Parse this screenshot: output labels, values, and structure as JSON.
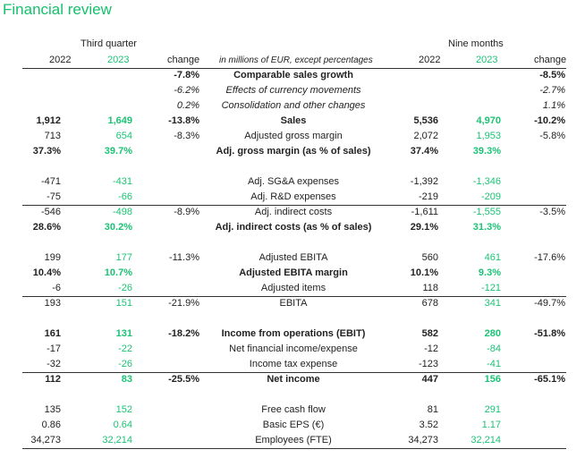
{
  "title": "Financial review",
  "header": {
    "third_quarter": "Third quarter",
    "nine_months": "Nine months",
    "y2022": "2022",
    "y2023": "2023",
    "change": "change",
    "unit_note": "in millions of EUR, except percentages"
  },
  "rows": [
    {
      "q22": "",
      "q23": "",
      "qc": "-7.8%",
      "label": "Comparable sales growth",
      "n22": "",
      "n23": "",
      "nc": "-8.5%",
      "bold": true,
      "italic": false
    },
    {
      "q22": "",
      "q23": "",
      "qc": "-6.2%",
      "label": "Effects of currency movements",
      "n22": "",
      "n23": "",
      "nc": "-2.7%",
      "bold": false,
      "italic": true
    },
    {
      "q22": "",
      "q23": "",
      "qc": "0.2%",
      "label": "Consolidation and other changes",
      "n22": "",
      "n23": "",
      "nc": "1.1%",
      "bold": false,
      "italic": true
    },
    {
      "q22": "1,912",
      "q23": "1,649",
      "qc": "-13.8%",
      "label": "Sales",
      "n22": "5,536",
      "n23": "4,970",
      "nc": "-10.2%",
      "bold": true,
      "italic": false
    },
    {
      "q22": "713",
      "q23": "654",
      "qc": "-8.3%",
      "label": "Adjusted gross margin",
      "n22": "2,072",
      "n23": "1,953",
      "nc": "-5.8%",
      "bold": false,
      "italic": false
    },
    {
      "q22": "37.3%",
      "q23": "39.7%",
      "qc": "",
      "label": "Adj. gross margin (as % of sales)",
      "n22": "37.4%",
      "n23": "39.3%",
      "nc": "",
      "bold": true,
      "italic": false
    },
    {
      "q22": "-471",
      "q23": "-431",
      "qc": "",
      "label": "Adj. SG&A expenses",
      "n22": "-1,392",
      "n23": "-1,346",
      "nc": "",
      "bold": false,
      "italic": false
    },
    {
      "q22": "-75",
      "q23": "-66",
      "qc": "",
      "label": "Adj. R&D expenses",
      "n22": "-219",
      "n23": "-209",
      "nc": "",
      "bold": false,
      "italic": false
    },
    {
      "q22": "-546",
      "q23": "-498",
      "qc": "-8.9%",
      "label": "Adj. indirect costs",
      "n22": "-1,611",
      "n23": "-1,555",
      "nc": "-3.5%",
      "bold": false,
      "italic": false
    },
    {
      "q22": "28.6%",
      "q23": "30.2%",
      "qc": "",
      "label": "Adj. indirect costs (as % of sales)",
      "n22": "29.1%",
      "n23": "31.3%",
      "nc": "",
      "bold": true,
      "italic": false
    },
    {
      "q22": "199",
      "q23": "177",
      "qc": "-11.3%",
      "label": "Adjusted EBITA",
      "n22": "560",
      "n23": "461",
      "nc": "-17.6%",
      "bold": false,
      "italic": false
    },
    {
      "q22": "10.4%",
      "q23": "10.7%",
      "qc": "",
      "label": "Adjusted EBITA margin",
      "n22": "10.1%",
      "n23": "9.3%",
      "nc": "",
      "bold": true,
      "italic": false
    },
    {
      "q22": "-6",
      "q23": "-26",
      "qc": "",
      "label": "Adjusted items",
      "n22": "118",
      "n23": "-121",
      "nc": "",
      "bold": false,
      "italic": false
    },
    {
      "q22": "193",
      "q23": "151",
      "qc": "-21.9%",
      "label": "EBITA",
      "n22": "678",
      "n23": "341",
      "nc": "-49.7%",
      "bold": false,
      "italic": false
    },
    {
      "q22": "161",
      "q23": "131",
      "qc": "-18.2%",
      "label": "Income from operations (EBIT)",
      "n22": "582",
      "n23": "280",
      "nc": "-51.8%",
      "bold": true,
      "italic": false
    },
    {
      "q22": "-17",
      "q23": "-22",
      "qc": "",
      "label": "Net financial income/expense",
      "n22": "-12",
      "n23": "-84",
      "nc": "",
      "bold": false,
      "italic": false
    },
    {
      "q22": "-32",
      "q23": "-26",
      "qc": "",
      "label": "Income tax expense",
      "n22": "-123",
      "n23": "-41",
      "nc": "",
      "bold": false,
      "italic": false
    },
    {
      "q22": "112",
      "q23": "83",
      "qc": "-25.5%",
      "label": "Net income",
      "n22": "447",
      "n23": "156",
      "nc": "-65.1%",
      "bold": true,
      "italic": false
    },
    {
      "q22": "135",
      "q23": "152",
      "qc": "",
      "label": "Free cash flow",
      "n22": "81",
      "n23": "291",
      "nc": "",
      "bold": false,
      "italic": false
    },
    {
      "q22": "0.86",
      "q23": "0.64",
      "qc": "",
      "label": "Basic EPS (€)",
      "n22": "3.52",
      "n23": "1.17",
      "nc": "",
      "bold": false,
      "italic": false
    },
    {
      "q22": "34,273",
      "q23": "32,214",
      "qc": "",
      "label": "Employees (FTE)",
      "n22": "34,273",
      "n23": "32,214",
      "nc": "",
      "bold": false,
      "italic": false
    }
  ]
}
